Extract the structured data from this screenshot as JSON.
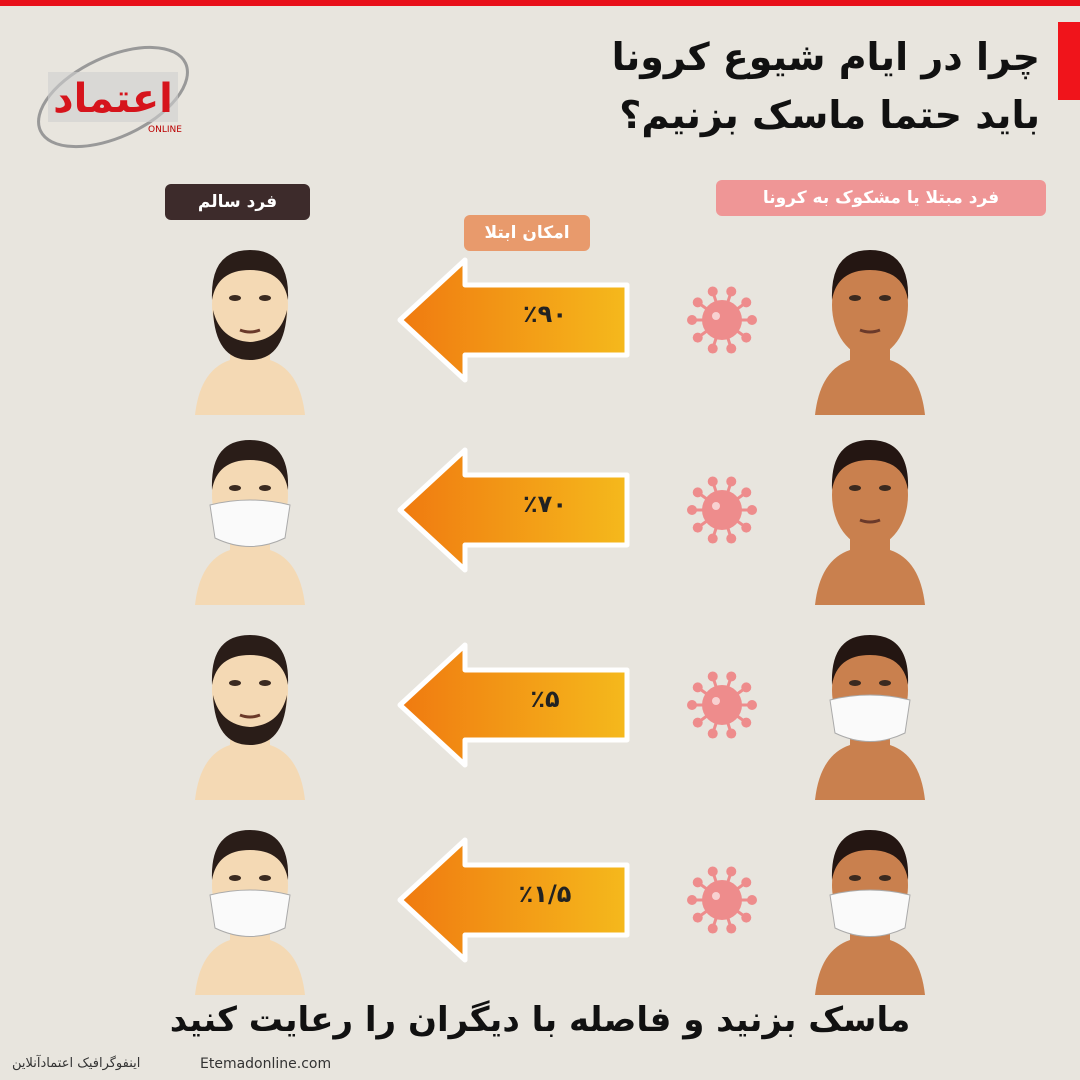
{
  "title": {
    "line1": "چرا در ایام شیوع کرونا",
    "line2": "باید حتما ماسک بزنیم؟"
  },
  "logo": {
    "text": "اعتماد",
    "sub": "ONLINE"
  },
  "headers": {
    "sick": "فرد مبتلا یا مشکوک به کرونا",
    "chance": "امکان ابتلا",
    "healthy": "فرد سالم"
  },
  "rows": [
    {
      "percent": "٪۹۰",
      "sick_mask": false,
      "healthy_mask": false,
      "healthy_beard": true
    },
    {
      "percent": "٪۷۰",
      "sick_mask": false,
      "healthy_mask": true,
      "healthy_beard": false
    },
    {
      "percent": "٪۵",
      "sick_mask": true,
      "healthy_mask": false,
      "healthy_beard": true
    },
    {
      "percent": "٪۱/۵",
      "sick_mask": true,
      "healthy_mask": true,
      "healthy_beard": false
    }
  ],
  "slogan": "ماسک بزنید و فاصله با دیگران را رعایت کنید",
  "footer": {
    "site": "Etemadonline.com",
    "info": "اینفوگرافیک اعتمادآنلاین"
  },
  "colors": {
    "accent_red": "#e8101a",
    "sick_pill": "#ef9696",
    "chance_pill": "#e89a6c",
    "healthy_pill": "#3d2b2b",
    "arrow_light": "#f5b91c",
    "arrow_dark": "#f07a10",
    "virus": "#ee8c8c",
    "sick_skin": "#c9804e",
    "healthy_skin": "#f4d9b4"
  }
}
